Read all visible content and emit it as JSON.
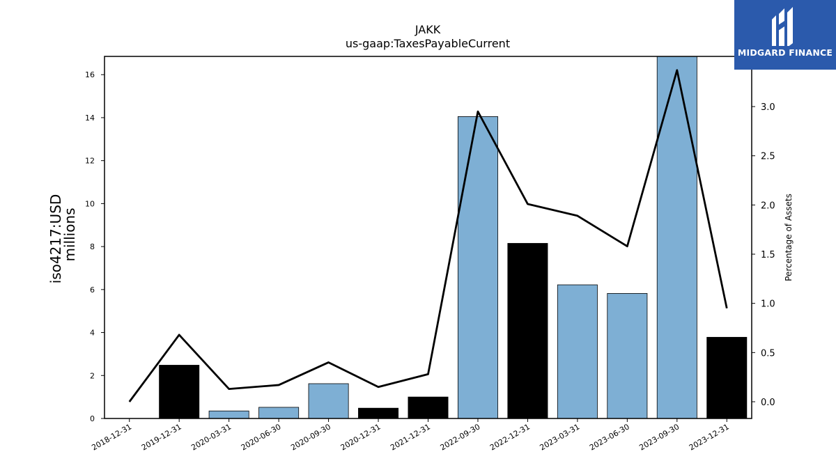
{
  "chart_data": {
    "type": "bar",
    "title": "JAKK",
    "subtitle": "us-gaap:TaxesPayableCurrent",
    "ylabel_line1": "iso4217:USD",
    "ylabel_line2": "millions",
    "y2label": "Percentage of Assets",
    "categories": [
      "2018-12-31",
      "2019-12-31",
      "2020-03-31",
      "2020-06-30",
      "2020-09-30",
      "2020-12-31",
      "2021-12-31",
      "2022-09-30",
      "2022-12-31",
      "2023-03-31",
      "2023-06-30",
      "2023-09-30",
      "2023-12-31"
    ],
    "series": [
      {
        "values": [
          0,
          2.48,
          0.35,
          0.52,
          1.62,
          0.48,
          1.0,
          14.05,
          8.15,
          6.22,
          5.82,
          16.85,
          3.78
        ],
        "axis": "left"
      },
      {
        "values": [
          0.0,
          0.68,
          0.13,
          0.17,
          0.4,
          0.15,
          0.28,
          2.95,
          2.01,
          1.89,
          1.58,
          3.37,
          0.95
        ],
        "axis": "right"
      }
    ],
    "bar_colors": [
      "#7eafd4",
      "#000000",
      "#7eafd4",
      "#7eafd4",
      "#7eafd4",
      "#000000",
      "#000000",
      "#7eafd4",
      "#000000",
      "#7eafd4",
      "#7eafd4",
      "#7eafd4",
      "#000000"
    ],
    "line_color": "#000000",
    "ylim": [
      0,
      16.85
    ],
    "y2lim": [
      -0.17,
      3.51
    ],
    "yticks": [
      0,
      2,
      4,
      6,
      8,
      10,
      12,
      14,
      16
    ],
    "y2ticks": [
      "0.0",
      "0.5",
      "1.0",
      "1.5",
      "2.0",
      "2.5",
      "3.0"
    ],
    "grid": false
  },
  "logo": {
    "text": "MIDGARD FINANCE",
    "background": "#2b5aac"
  }
}
